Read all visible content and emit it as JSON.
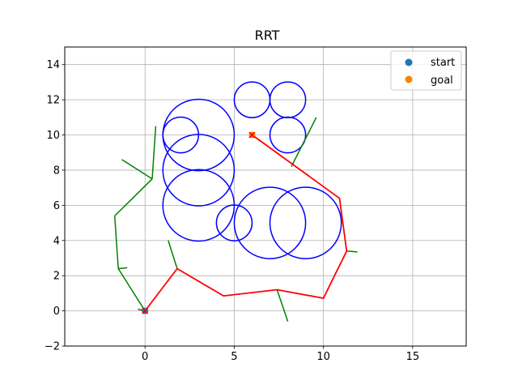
{
  "chart_data": {
    "type": "scatter",
    "title": "RRT",
    "xlabel": "",
    "ylabel": "",
    "xlim": [
      -4.5,
      18
    ],
    "ylim": [
      -2,
      15
    ],
    "xticks": [
      0,
      5,
      10,
      15
    ],
    "yticks": [
      -2,
      0,
      2,
      4,
      6,
      8,
      10,
      12,
      14
    ],
    "grid": true,
    "legend_position": "top-right",
    "series": [
      {
        "name": "start",
        "type": "scatter",
        "color": "#1f77b4",
        "points": [
          [
            0,
            0
          ]
        ]
      },
      {
        "name": "goal",
        "type": "scatter",
        "color": "#ff7f0e",
        "points": [
          [
            6,
            10
          ]
        ]
      }
    ],
    "obstacles": {
      "color": "#0000ff",
      "circles": [
        {
          "x": 5,
          "y": 5,
          "r": 1
        },
        {
          "x": 3,
          "y": 6,
          "r": 2
        },
        {
          "x": 3,
          "y": 8,
          "r": 2
        },
        {
          "x": 3,
          "y": 10,
          "r": 2
        },
        {
          "x": 7,
          "y": 5,
          "r": 2
        },
        {
          "x": 9,
          "y": 5,
          "r": 2
        },
        {
          "x": 8,
          "y": 10,
          "r": 1
        },
        {
          "x": 6,
          "y": 12,
          "r": 1
        },
        {
          "x": 8,
          "y": 12,
          "r": 1
        },
        {
          "x": 2,
          "y": 10,
          "r": 1
        }
      ]
    },
    "tree": {
      "color": "#008000",
      "edges": [
        [
          [
            0,
            0
          ],
          [
            -1.5,
            2.4
          ]
        ],
        [
          [
            -1.5,
            2.4
          ],
          [
            -1.7,
            5.4
          ]
        ],
        [
          [
            -1.7,
            5.4
          ],
          [
            0.4,
            7.5
          ]
        ],
        [
          [
            0.4,
            7.5
          ],
          [
            -1.3,
            8.6
          ]
        ],
        [
          [
            0.4,
            7.5
          ],
          [
            0.6,
            10.5
          ]
        ],
        [
          [
            -1.5,
            2.4
          ],
          [
            -1.0,
            2.45
          ]
        ],
        [
          [
            0,
            0
          ],
          [
            -0.4,
            0.1
          ]
        ],
        [
          [
            1.8,
            2.4
          ],
          [
            1.3,
            4.0
          ]
        ],
        [
          [
            7.4,
            1.2
          ],
          [
            8.0,
            -0.6
          ]
        ],
        [
          [
            11.3,
            3.4
          ],
          [
            11.9,
            3.35
          ]
        ],
        [
          [
            8.2,
            8.2
          ],
          [
            9.6,
            11.0
          ]
        ]
      ]
    },
    "path": {
      "color": "#ff0000",
      "points": [
        [
          0,
          0
        ],
        [
          1.8,
          2.4
        ],
        [
          4.4,
          0.85
        ],
        [
          7.4,
          1.2
        ],
        [
          10.0,
          0.72
        ],
        [
          11.3,
          3.4
        ],
        [
          10.9,
          6.4
        ],
        [
          6,
          10
        ]
      ]
    },
    "markers": {
      "color": "#ff0000",
      "symbol": "x",
      "points": [
        [
          0,
          0
        ],
        [
          6,
          10
        ]
      ]
    }
  }
}
